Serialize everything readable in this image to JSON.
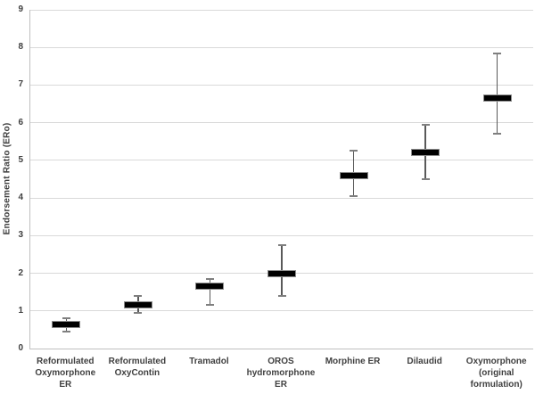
{
  "chart_data": {
    "type": "scatter",
    "subtype": "point_estimate_with_ci_whiskers",
    "title": "",
    "xlabel": "",
    "ylabel": "Endorsement Ratio (ERo)",
    "ylim": [
      0,
      9
    ],
    "yticks": [
      0,
      1,
      2,
      3,
      4,
      5,
      6,
      7,
      8,
      9
    ],
    "grid": "horizontal",
    "legend": "none",
    "categories": [
      {
        "label": "Reformulated Oxymorphone ER",
        "lines": [
          "Reformulated",
          "Oxymorphone ER"
        ]
      },
      {
        "label": "Reformulated OxyContin",
        "lines": [
          "Reformulated",
          "OxyContin"
        ]
      },
      {
        "label": "Tramadol",
        "lines": [
          "Tramadol"
        ]
      },
      {
        "label": "OROS hydromorphone ER",
        "lines": [
          "OROS",
          "hydromorphone",
          "ER"
        ]
      },
      {
        "label": "Morphine ER",
        "lines": [
          "Morphine ER"
        ]
      },
      {
        "label": "Dilaudid",
        "lines": [
          "Dilaudid"
        ]
      },
      {
        "label": "Oxymorphone (original formulation)",
        "lines": [
          "Oxymorphone",
          "(original",
          "formulation)"
        ]
      }
    ],
    "series": [
      {
        "name": "Endorsement Ratio (ERo)",
        "estimates": [
          0.65,
          1.15,
          1.65,
          2.0,
          4.6,
          5.2,
          6.65
        ],
        "ci_low": [
          0.45,
          0.95,
          1.15,
          1.4,
          4.05,
          4.5,
          5.7
        ],
        "ci_high": [
          0.8,
          1.4,
          1.85,
          2.75,
          5.25,
          5.95,
          7.85
        ]
      }
    ],
    "colors": {
      "estimate_bar": "#000000",
      "whisker": "#595959",
      "whisker_cap": "#7f7f7f",
      "gridline": "#d9d9d9",
      "axis_line": "#bfbfbf",
      "text": "#404040",
      "background": "#ffffff"
    }
  }
}
